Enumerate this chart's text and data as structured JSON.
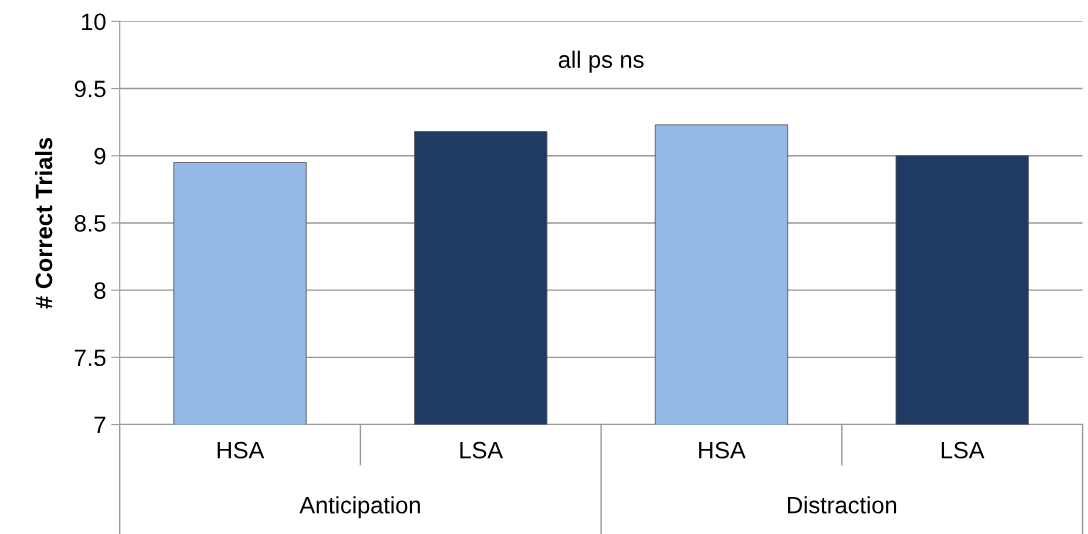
{
  "chart_data": {
    "type": "bar",
    "ylabel": "# Correct Trials",
    "categories": [
      "HSA",
      "LSA",
      "HSA",
      "LSA"
    ],
    "values": [
      8.95,
      9.18,
      9.23,
      9.0
    ],
    "colors": [
      "#95b9e6",
      "#1f3a63",
      "#95b9e6",
      "#1f3a63"
    ],
    "ylim": [
      7,
      10
    ],
    "yticks": [
      7,
      7.5,
      8,
      8.5,
      9,
      9.5,
      10
    ],
    "grid": "y",
    "annotations": [
      "all ps ns",
      "Anticipation",
      "Distraction"
    ]
  }
}
